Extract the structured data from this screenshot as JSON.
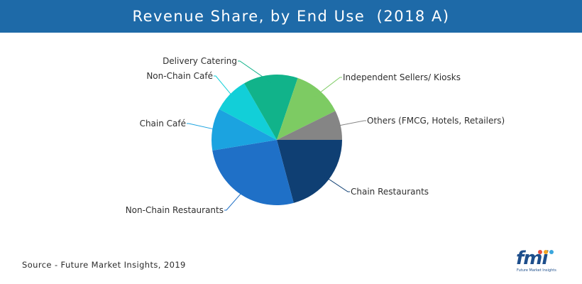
{
  "header": {
    "title": "Revenue Share, by End Use  (2018 A)"
  },
  "footer": {
    "source": "Source - Future Market Insights, 2019"
  },
  "logo": {
    "wordmark": "fmi",
    "tagline": "Future Market Insights"
  },
  "chart_data": {
    "type": "pie",
    "title": "Revenue Share, by End Use  (2018 A)",
    "legend": "none",
    "slices": [
      {
        "label": "Chain Restaurants",
        "value": 20,
        "color": "#0f3f73",
        "label_pos": "right"
      },
      {
        "label": "Non-Chain Restaurants",
        "value": 25.5,
        "color": "#1f70c7",
        "label_pos": "left"
      },
      {
        "label": "Chain Café",
        "value": 10,
        "color": "#1ba3e0",
        "label_pos": "left"
      },
      {
        "label": "Non-Chain Café",
        "value": 8.5,
        "color": "#12cfd8",
        "label_pos": "left"
      },
      {
        "label": "Delivery Catering",
        "value": 13,
        "color": "#11b38a",
        "label_pos": "left"
      },
      {
        "label": "Independent Sellers/ Kiosks",
        "value": 12,
        "color": "#7dcb63",
        "label_pos": "right"
      },
      {
        "label": "Others (FMCG, Hotels, Retailers)",
        "value": 7,
        "color": "#858585",
        "label_pos": "right"
      }
    ]
  }
}
